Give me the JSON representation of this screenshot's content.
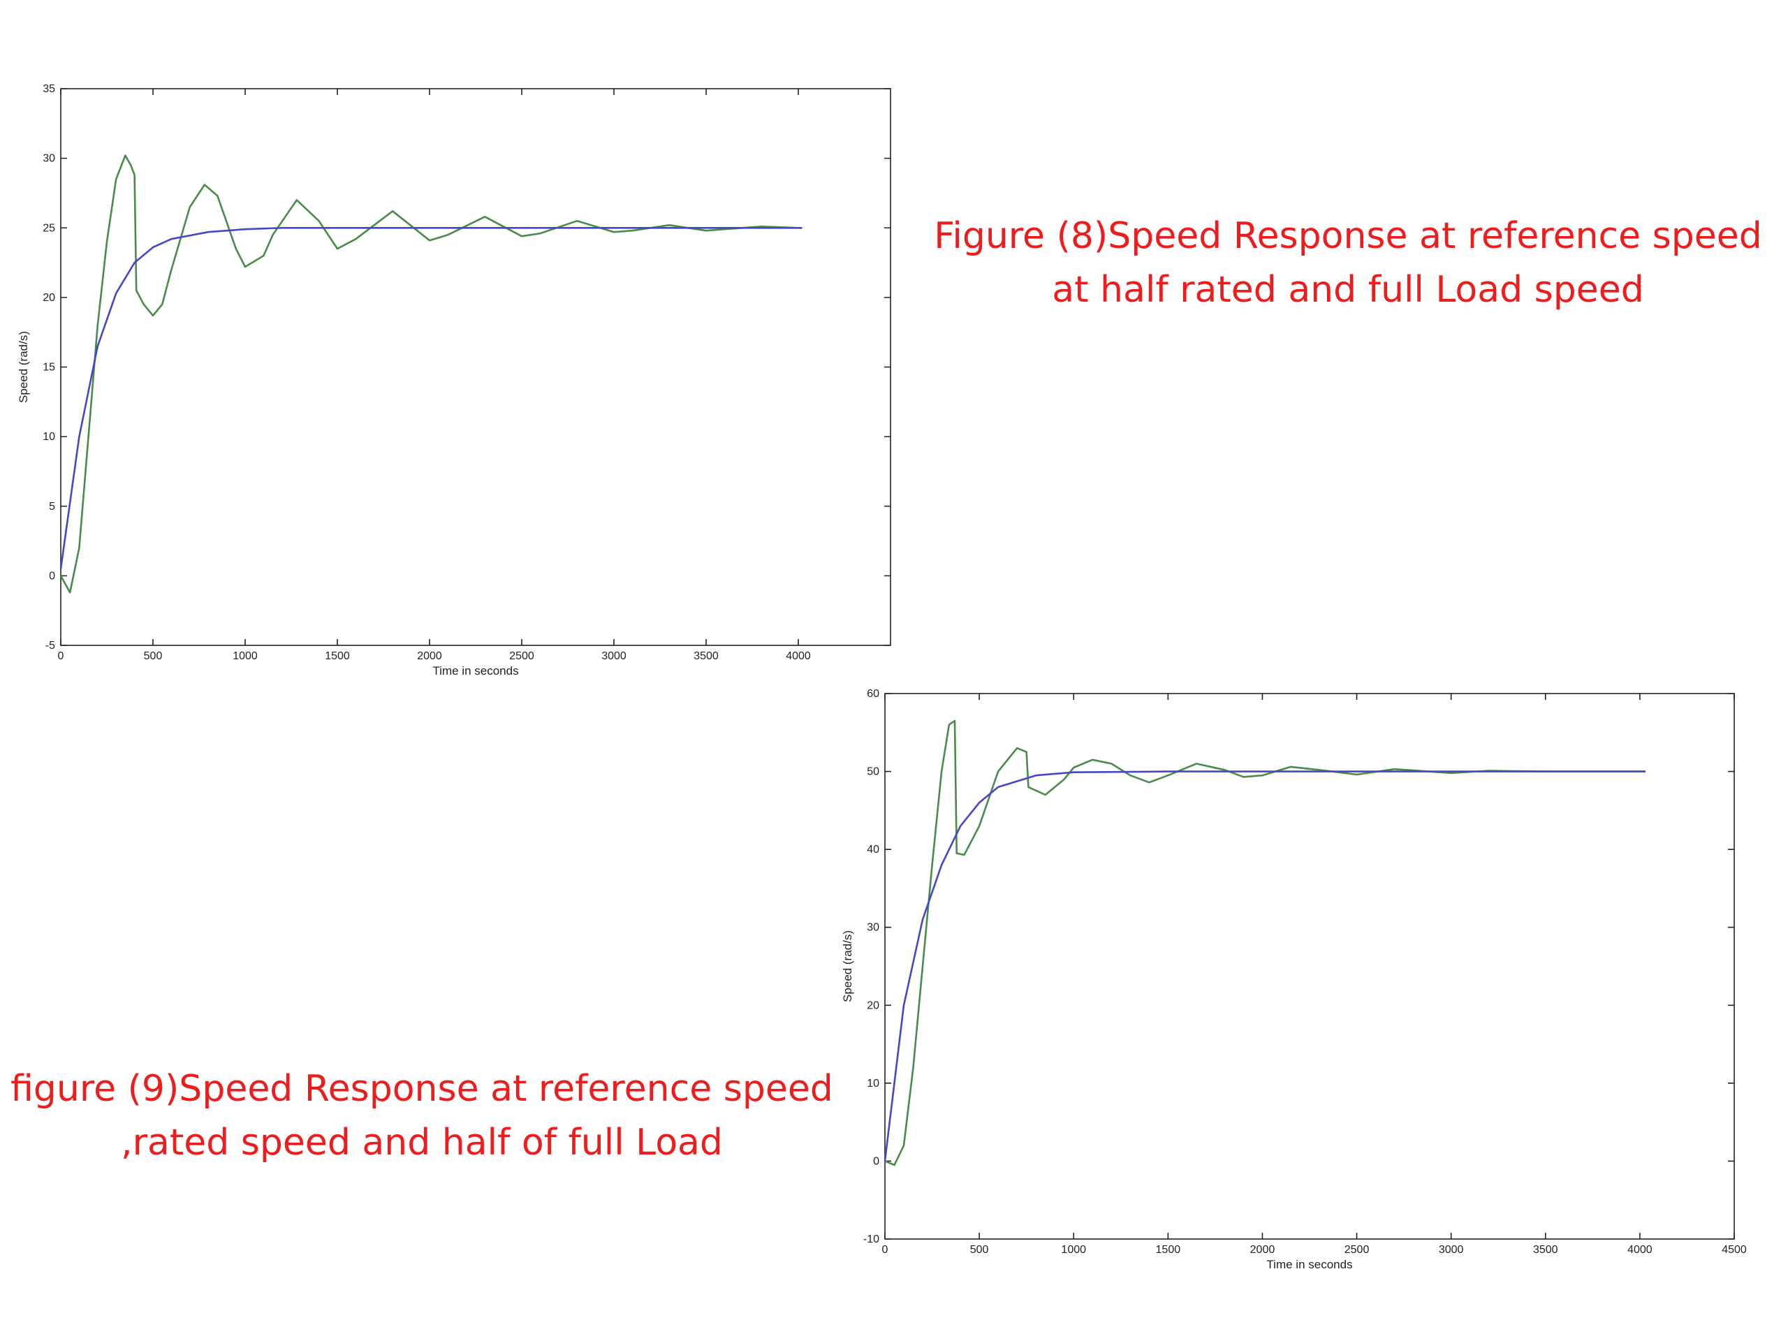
{
  "chart_data": [
    {
      "type": "line",
      "caption": [
        "Figure (8)Speed Response at reference speed",
        "at half rated and full Load speed"
      ],
      "xlabel": "Time in seconds",
      "ylabel": "Speed (rad/s)",
      "xlim": [
        0,
        4500
      ],
      "xticks": [
        0,
        500,
        1000,
        1500,
        2000,
        2500,
        3000,
        3500,
        4000
      ],
      "ylim": [
        -5,
        35
      ],
      "yticks": [
        -5,
        0,
        5,
        10,
        15,
        20,
        25,
        30,
        35
      ],
      "series": [
        {
          "color": "#4a8a4a",
          "x": [
            0,
            50,
            100,
            150,
            200,
            250,
            300,
            350,
            380,
            400,
            410,
            450,
            500,
            550,
            600,
            700,
            780,
            850,
            950,
            1000,
            1100,
            1150,
            1280,
            1400,
            1500,
            1600,
            1800,
            2000,
            2100,
            2300,
            2500,
            2600,
            2800,
            3000,
            3100,
            3300,
            3500,
            3600,
            3800,
            4000,
            4020
          ],
          "values": [
            0,
            -1.2,
            2,
            10,
            18,
            24,
            28.5,
            30.2,
            29.5,
            28.8,
            20.5,
            19.5,
            18.7,
            19.5,
            22,
            26.5,
            28.1,
            27.3,
            23.5,
            22.2,
            23,
            24.5,
            27,
            25.5,
            23.5,
            24.2,
            26.2,
            24.1,
            24.5,
            25.8,
            24.4,
            24.6,
            25.5,
            24.7,
            24.8,
            25.2,
            24.8,
            24.9,
            25.1,
            25,
            25
          ]
        },
        {
          "color": "#4646c8",
          "x": [
            0,
            100,
            200,
            300,
            400,
            500,
            600,
            800,
            1000,
            1200,
            1500,
            2000,
            4020
          ],
          "values": [
            0.5,
            10,
            16.5,
            20.3,
            22.5,
            23.6,
            24.2,
            24.7,
            24.9,
            25,
            25,
            25,
            25
          ]
        }
      ]
    },
    {
      "type": "line",
      "caption": [
        "figure (9)Speed Response at reference speed",
        ",rated speed and half of full Load"
      ],
      "xlabel": "Time in seconds",
      "ylabel": "Speed (rad/s)",
      "xlim": [
        0,
        4500
      ],
      "xticks": [
        0,
        500,
        1000,
        1500,
        2000,
        2500,
        3000,
        3500,
        4000,
        4500
      ],
      "ylim": [
        -10,
        60
      ],
      "yticks": [
        -10,
        0,
        10,
        20,
        30,
        40,
        50,
        60
      ],
      "series": [
        {
          "color": "#4a8a4a",
          "x": [
            0,
            50,
            100,
            150,
            200,
            250,
            300,
            340,
            370,
            380,
            420,
            500,
            600,
            700,
            750,
            760,
            850,
            950,
            1000,
            1100,
            1200,
            1300,
            1400,
            1500,
            1650,
            1800,
            1900,
            2000,
            2150,
            2300,
            2500,
            2700,
            3000,
            3200,
            3500,
            4000,
            4030
          ],
          "values": [
            0,
            -0.5,
            2,
            12,
            25,
            38,
            50,
            56,
            56.5,
            39.5,
            39.3,
            43,
            50,
            53,
            52.5,
            48,
            47,
            49,
            50.5,
            51.5,
            51,
            49.5,
            48.6,
            49.5,
            51,
            50.2,
            49.3,
            49.5,
            50.6,
            50.2,
            49.6,
            50.3,
            49.8,
            50.1,
            50,
            50,
            50
          ]
        },
        {
          "color": "#4646c8",
          "x": [
            0,
            100,
            200,
            300,
            400,
            500,
            600,
            800,
            1000,
            1500,
            4030
          ],
          "values": [
            0,
            20,
            31,
            38,
            43,
            46,
            48,
            49.5,
            49.9,
            50,
            50
          ]
        }
      ]
    }
  ]
}
